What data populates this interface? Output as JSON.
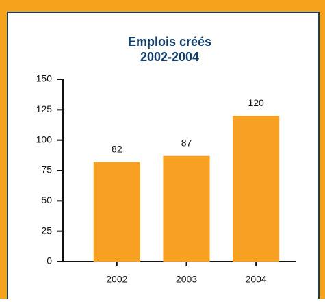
{
  "chart_data": {
    "type": "bar",
    "title": "Emplois créés",
    "subtitle": "2002-2004",
    "categories": [
      "2002",
      "2003",
      "2004"
    ],
    "values": [
      82,
      87,
      120
    ],
    "color": "#f7a021",
    "ylim": [
      0,
      150
    ],
    "yticks": [
      0,
      25,
      50,
      75,
      100,
      125,
      150
    ],
    "grid": false
  }
}
